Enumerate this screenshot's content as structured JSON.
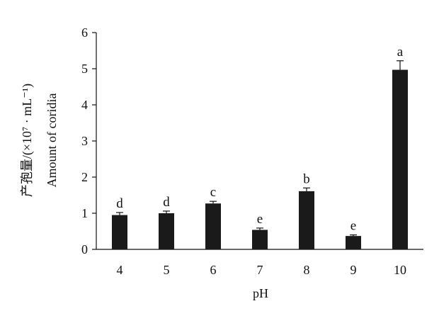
{
  "chart_data": {
    "type": "bar",
    "categories": [
      "4",
      "5",
      "6",
      "7",
      "8",
      "9",
      "10"
    ],
    "values": [
      0.95,
      1.0,
      1.27,
      0.54,
      1.61,
      0.37,
      4.97
    ],
    "errors": [
      0.07,
      0.06,
      0.06,
      0.05,
      0.09,
      0.03,
      0.25
    ],
    "letters": [
      "d",
      "d",
      "c",
      "e",
      "b",
      "e",
      "a"
    ],
    "xlabel": "pH",
    "ylabel_cn": "产孢量/(×10⁷ · mL⁻¹)",
    "ylabel_en": "Amount of coridia",
    "ylim": [
      0,
      6
    ],
    "yticks": [
      "0",
      "1",
      "2",
      "3",
      "4",
      "5",
      "6"
    ],
    "grid": false,
    "bar_color": "#1a1a1a"
  }
}
